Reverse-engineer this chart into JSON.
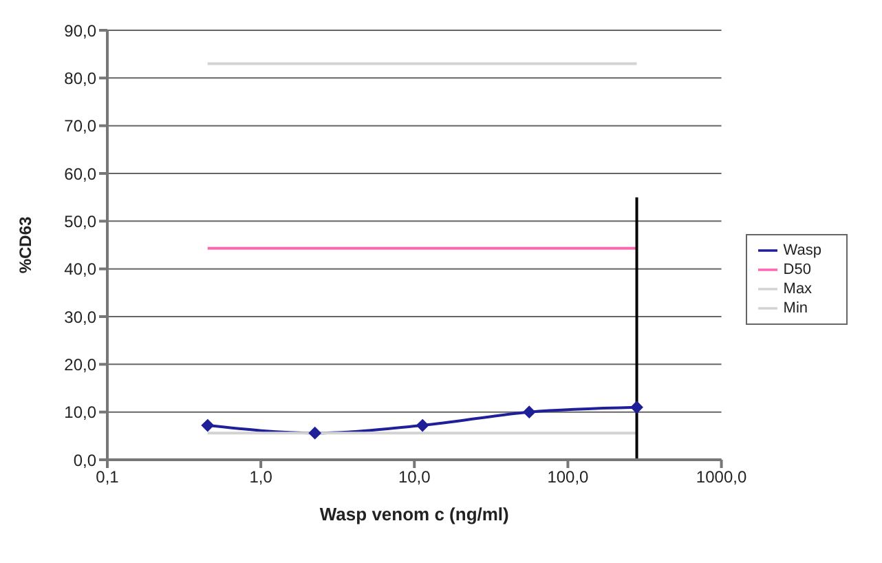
{
  "chart_data": {
    "type": "line",
    "xlabel": "Wasp venom c (ng/ml)",
    "ylabel": "%CD63",
    "log": "x",
    "grid": "y",
    "legend": "right",
    "xlim": [
      0.1,
      1000
    ],
    "xticks": [
      {
        "value": 0.1,
        "label": "0,1"
      },
      {
        "value": 1,
        "label": "1,0"
      },
      {
        "value": 10,
        "label": "10,0"
      },
      {
        "value": 100,
        "label": "100,0"
      },
      {
        "value": 1000,
        "label": "1000,0"
      }
    ],
    "ylim": [
      0,
      90
    ],
    "yticks": [
      {
        "value": 0,
        "label": "0,0"
      },
      {
        "value": 10,
        "label": "10,0"
      },
      {
        "value": 20,
        "label": "20,0"
      },
      {
        "value": 30,
        "label": "30,0"
      },
      {
        "value": 40,
        "label": "40,0"
      },
      {
        "value": 50,
        "label": "50,0"
      },
      {
        "value": 60,
        "label": "60,0"
      },
      {
        "value": 70,
        "label": "70,0"
      },
      {
        "value": 80,
        "label": "80,0"
      },
      {
        "value": 90,
        "label": "90,0"
      }
    ],
    "series": [
      {
        "name": "Wasp",
        "color": "#1f1f99",
        "marker": "diamond",
        "x": [
          0.45,
          2.25,
          11.3,
          56,
          281
        ],
        "values": [
          7.2,
          5.6,
          7.2,
          10.0,
          11.0
        ]
      },
      {
        "name": "D50",
        "color": "#ff66b2",
        "marker": "none",
        "x": [
          0.45,
          281
        ],
        "values": [
          44.3,
          44.3
        ]
      },
      {
        "name": "Max",
        "color": "#d3d3d3",
        "marker": "none",
        "x": [
          0.45,
          281
        ],
        "values": [
          83.0,
          83.0
        ]
      },
      {
        "name": "Min",
        "color": "#d3d3d3",
        "marker": "none",
        "x": [
          0.45,
          281
        ],
        "values": [
          5.6,
          5.6
        ]
      },
      {
        "color": "#000000",
        "marker": "none",
        "x": [
          281,
          281
        ],
        "values": [
          0,
          55
        ]
      }
    ]
  }
}
